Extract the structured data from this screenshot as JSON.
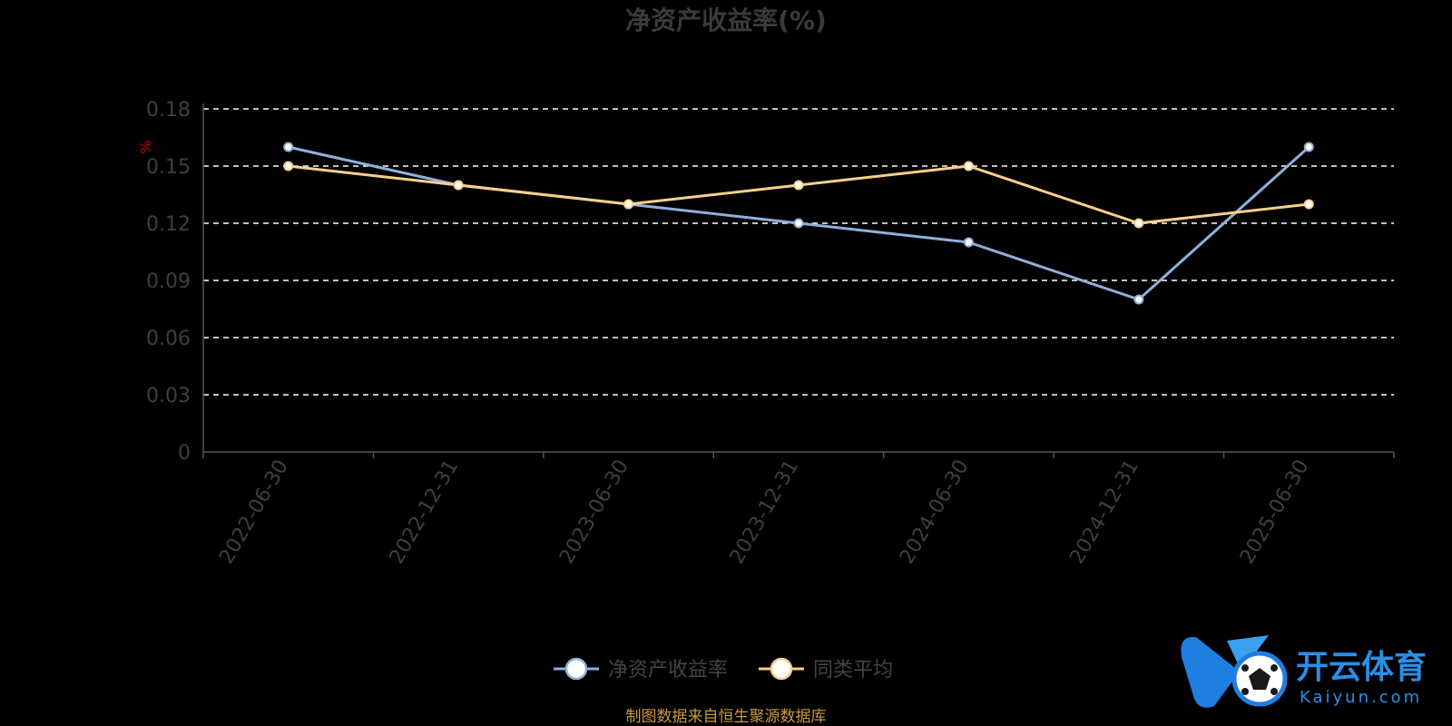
{
  "chart_data": {
    "type": "line",
    "title": "净资产收益率(%)",
    "unit": "%",
    "categories": [
      "2022-06-30",
      "2022-12-31",
      "2023-06-30",
      "2023-12-31",
      "2024-06-30",
      "2024-12-31",
      "2025-06-30"
    ],
    "series": [
      {
        "name": "净资产收益率",
        "values": [
          0.16,
          0.14,
          0.13,
          0.12,
          0.11,
          0.08,
          0.16
        ],
        "color": "#8fb0dc"
      },
      {
        "name": "同类平均",
        "values": [
          0.15,
          0.14,
          0.13,
          0.14,
          0.15,
          0.12,
          0.13
        ],
        "color": "#f7d08a"
      }
    ],
    "yticks": [
      "0",
      "0.03",
      "0.06",
      "0.09",
      "0.12",
      "0.15",
      "0.18"
    ],
    "ylim": [
      0,
      0.18
    ],
    "grid": true,
    "legend_position": "bottom-center"
  },
  "footer": {
    "source": "制图数据来自恒生聚源数据库"
  },
  "watermark": {
    "name": "开云体育",
    "domain": "Kaiyun.com"
  },
  "colors": {
    "background": "#000000",
    "grid": "#ffffff",
    "axis": "#555555"
  }
}
